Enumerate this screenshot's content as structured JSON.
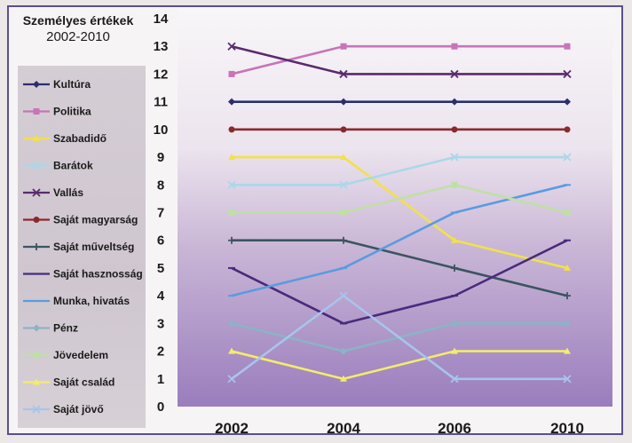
{
  "chart_data": {
    "type": "line",
    "title": "Személyes értékek",
    "subtitle": "2002-2010",
    "x": [
      "2002",
      "2004",
      "2006",
      "2010"
    ],
    "ylim": [
      0,
      14
    ],
    "yticks": [
      0,
      1,
      2,
      3,
      4,
      5,
      6,
      7,
      8,
      9,
      10,
      11,
      12,
      13,
      14
    ],
    "grid": false,
    "legend_position": "left",
    "series": [
      {
        "name": "Kultúra",
        "values": [
          11,
          11,
          11,
          11
        ],
        "color": "#2b2d6e",
        "marker": "diamond"
      },
      {
        "name": "Politika",
        "values": [
          12,
          13,
          13,
          13
        ],
        "color": "#c774b9",
        "marker": "square"
      },
      {
        "name": "Szabadidő",
        "values": [
          9,
          9,
          6,
          5
        ],
        "color": "#f2e14a",
        "marker": "triangle"
      },
      {
        "name": "Barátok",
        "values": [
          8,
          8,
          9,
          9
        ],
        "color": "#a9d8ea",
        "marker": "x"
      },
      {
        "name": "Vallás",
        "values": [
          13,
          12,
          12,
          12
        ],
        "color": "#5a2a6e",
        "marker": "x"
      },
      {
        "name": "Saját magyarság",
        "values": [
          10,
          10,
          10,
          10
        ],
        "color": "#8a2a2a",
        "marker": "circle"
      },
      {
        "name": "Saját műveltség",
        "values": [
          6,
          6,
          5,
          4
        ],
        "color": "#3b5560",
        "marker": "plus"
      },
      {
        "name": "Saját hasznosság",
        "values": [
          5,
          3,
          4,
          6
        ],
        "color": "#4a2a7e",
        "marker": "dash"
      },
      {
        "name": "Munka, hivatás",
        "values": [
          4,
          5,
          7,
          8
        ],
        "color": "#5a9be0",
        "marker": "dash"
      },
      {
        "name": "Pénz",
        "values": [
          3,
          2,
          3,
          3
        ],
        "color": "#8ab4c4",
        "marker": "diamond"
      },
      {
        "name": "Jövedelem",
        "values": [
          7,
          7,
          8,
          7
        ],
        "color": "#bfe0a4",
        "marker": "square"
      },
      {
        "name": "Saját család",
        "values": [
          2,
          1,
          2,
          2
        ],
        "color": "#f5ec6a",
        "marker": "triangle"
      },
      {
        "name": "Saját jövő",
        "values": [
          1,
          4,
          1,
          1
        ],
        "color": "#a8c4ec",
        "marker": "x"
      }
    ]
  }
}
